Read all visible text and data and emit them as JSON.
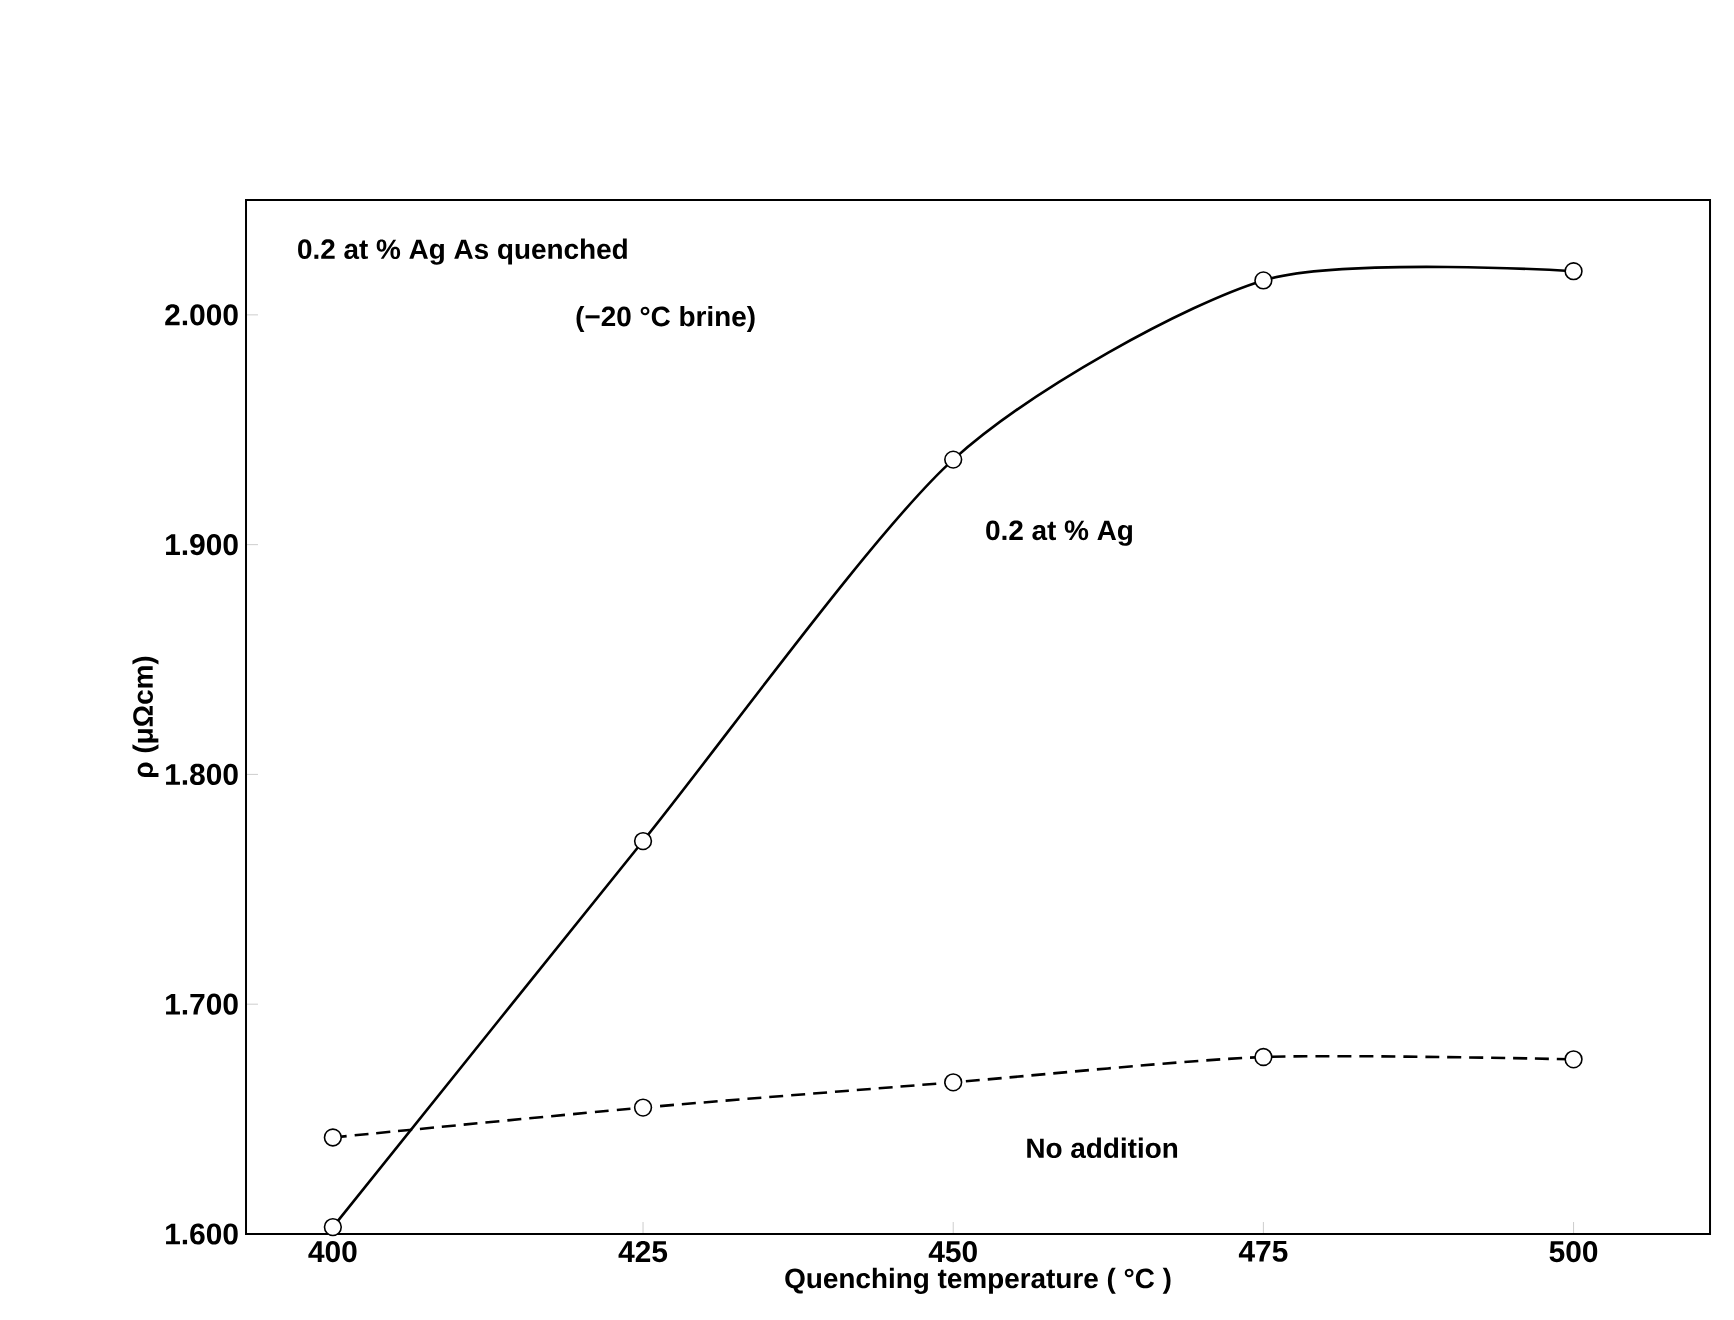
{
  "chart_data": {
    "type": "line",
    "xlabel": "Quenching temperature ( °C )",
    "ylabel": "ρ (μΩcm)",
    "annotations": [
      "0.2 at % Ag   As quenched",
      "(−20 °C brine)"
    ],
    "x": [
      400,
      425,
      450,
      475,
      500
    ],
    "series": [
      {
        "name": "0.2 at % Ag",
        "color": "#000000",
        "line_style": "solid",
        "values": [
          1.603,
          1.771,
          1.937,
          2.015,
          2.019
        ]
      },
      {
        "name": "No addition",
        "color": "#000000",
        "line_style": "dashed",
        "values": [
          1.642,
          1.655,
          1.666,
          1.677,
          1.676
        ]
      }
    ],
    "xlim": [
      393,
      511
    ],
    "ylim": [
      1.6,
      2.05
    ],
    "xticks": [
      400,
      425,
      450,
      475,
      500
    ],
    "yticks": [
      {
        "value": 1.6,
        "label": "1.600"
      },
      {
        "value": 1.7,
        "label": "1.700"
      },
      {
        "value": 1.8,
        "label": "1.800"
      },
      {
        "value": 1.9,
        "label": "1.900"
      },
      {
        "value": 2.0,
        "label": "2.000"
      }
    ],
    "marker": "circle",
    "grid": false,
    "legend": false
  }
}
